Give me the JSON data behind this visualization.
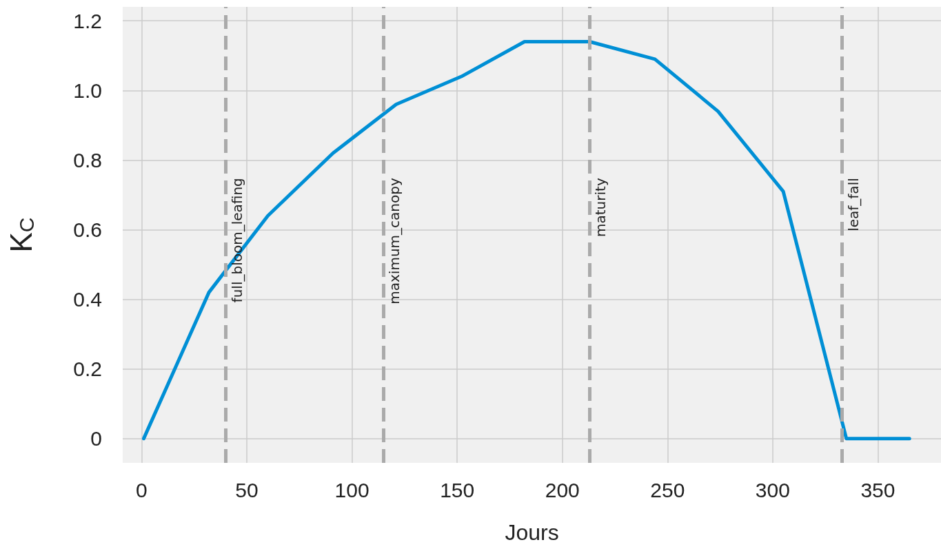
{
  "chart_data": {
    "type": "line",
    "xlabel": "Jours",
    "ylabel": "K$_{C}$",
    "x": [
      1,
      32,
      60,
      91,
      121,
      152,
      182,
      213,
      244,
      274,
      305,
      335,
      365
    ],
    "series": [
      {
        "color": "#008fd5",
        "values": [
          0,
          0.42,
          0.64,
          0.82,
          0.96,
          1.04,
          1.14,
          1.14,
          1.09,
          0.94,
          0.71,
          0,
          0
        ]
      }
    ],
    "xlim": [
      -9,
      380
    ],
    "xticks": [
      0,
      50,
      100,
      150,
      200,
      250,
      300,
      350
    ],
    "ylim": [
      -0.07,
      1.24
    ],
    "yticks": [
      0,
      0.2,
      0.4,
      0.6,
      0.8,
      {
        "value": 1,
        "label": "1.0"
      },
      1.2
    ],
    "ref_lines": [
      {
        "axis": "x",
        "value": 40,
        "label": "full_bloom_leafing",
        "color": "#aaaaaa",
        "line_style": "dashed"
      },
      {
        "axis": "x",
        "value": 115,
        "label": "maximum_canopy",
        "color": "#aaaaaa",
        "line_style": "dashed"
      },
      {
        "axis": "x",
        "value": 213,
        "label": "maturity",
        "color": "#aaaaaa",
        "line_style": "dashed"
      },
      {
        "axis": "x",
        "value": 333,
        "label": "leaf_fall",
        "color": "#aaaaaa",
        "line_style": "dashed"
      }
    ],
    "grid": true,
    "marker": "none",
    "line_style": "solid"
  }
}
